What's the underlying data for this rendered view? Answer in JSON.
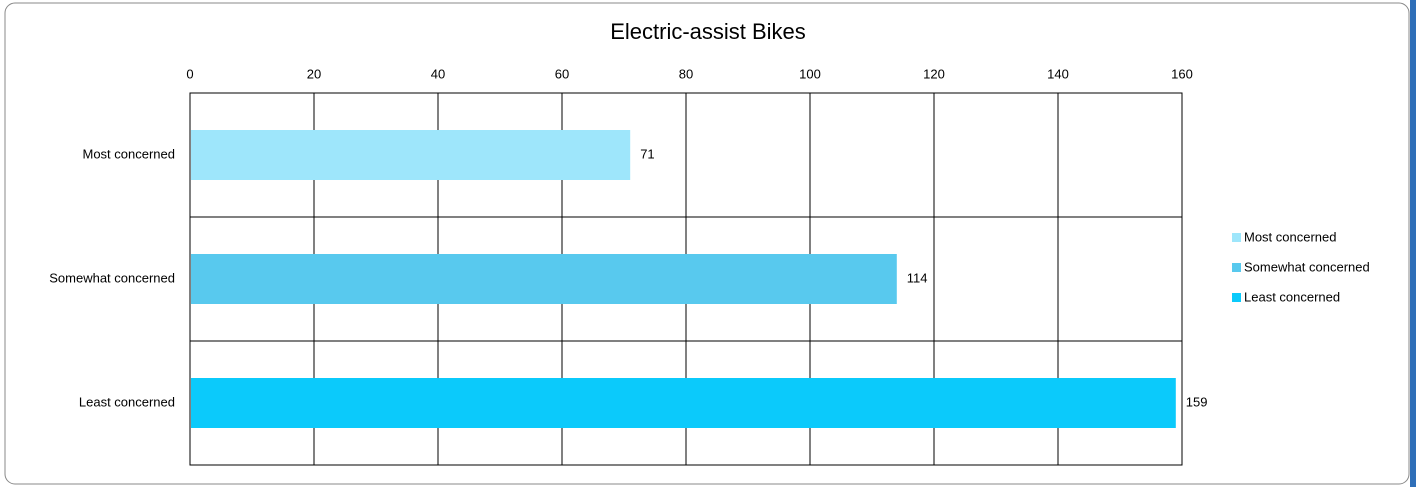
{
  "chart_data": {
    "type": "bar",
    "orientation": "horizontal",
    "title": "Electric-assist Bikes",
    "categories": [
      "Most concerned",
      "Somewhat concerned",
      "Least concerned"
    ],
    "values": [
      71,
      114,
      159
    ],
    "colors": [
      "#9ee6fb",
      "#58c9ee",
      "#0bcafb"
    ],
    "xlim": [
      0,
      160
    ],
    "xticks": [
      0,
      20,
      40,
      60,
      80,
      100,
      120,
      140,
      160
    ],
    "grid": true,
    "legend": "right"
  }
}
